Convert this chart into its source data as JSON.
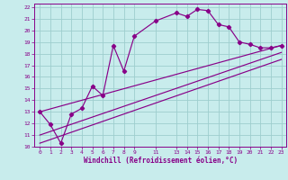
{
  "xlabel": "Windchill (Refroidissement éolien,°C)",
  "bg_color": "#c8ecec",
  "line_color": "#880088",
  "grid_color": "#9ecece",
  "xlim": [
    -0.5,
    23.5
  ],
  "ylim": [
    10,
    22.3
  ],
  "xticks": [
    0,
    1,
    2,
    3,
    4,
    5,
    6,
    7,
    8,
    9,
    11,
    13,
    14,
    15,
    16,
    17,
    18,
    19,
    20,
    21,
    22,
    23
  ],
  "yticks": [
    10,
    11,
    12,
    13,
    14,
    15,
    16,
    17,
    18,
    19,
    20,
    21,
    22
  ],
  "series1_x": [
    0,
    1,
    2,
    3,
    4,
    5,
    6,
    7,
    8,
    9,
    11,
    13,
    14,
    15,
    16,
    17,
    18,
    19,
    20,
    21,
    22,
    23
  ],
  "series1_y": [
    13.0,
    11.9,
    10.3,
    12.8,
    13.3,
    15.2,
    14.4,
    18.7,
    16.5,
    19.5,
    20.8,
    21.5,
    21.2,
    21.8,
    21.7,
    20.5,
    20.3,
    19.0,
    18.8,
    18.5,
    18.5,
    18.7
  ],
  "line1_x": [
    0,
    23
  ],
  "line1_y": [
    13.0,
    18.7
  ],
  "line2_x": [
    0,
    23
  ],
  "line2_y": [
    11.0,
    18.1
  ],
  "line3_x": [
    0,
    23
  ],
  "line3_y": [
    10.3,
    17.5
  ]
}
